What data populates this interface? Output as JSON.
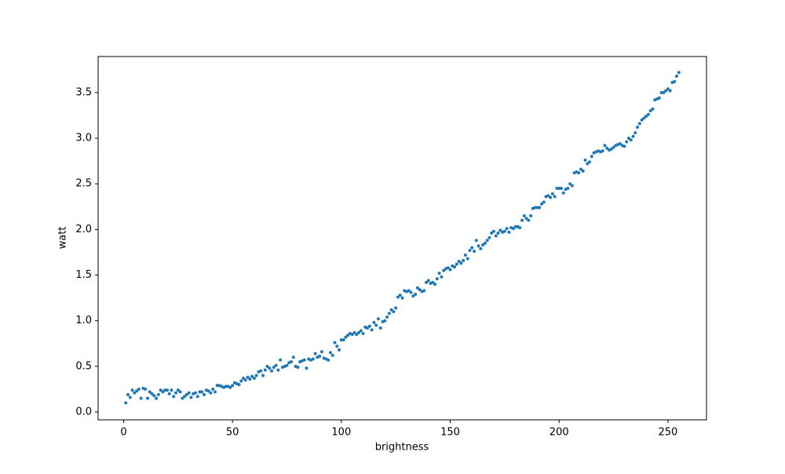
{
  "chart_data": {
    "type": "scatter",
    "xlabel": "brightness",
    "ylabel": "watt",
    "color": "#1f77b4",
    "x": [
      1,
      2,
      3,
      4,
      5,
      6,
      7,
      8,
      9,
      10,
      11,
      12,
      13,
      14,
      15,
      16,
      17,
      18,
      19,
      20,
      21,
      22,
      23,
      24,
      25,
      26,
      27,
      28,
      29,
      30,
      31,
      32,
      33,
      34,
      35,
      36,
      37,
      38,
      39,
      40,
      41,
      42,
      43,
      44,
      45,
      46,
      47,
      48,
      49,
      50,
      51,
      52,
      53,
      54,
      55,
      56,
      57,
      58,
      59,
      60,
      61,
      62,
      63,
      64,
      65,
      66,
      67,
      68,
      69,
      70,
      71,
      72,
      73,
      74,
      75,
      76,
      77,
      78,
      79,
      80,
      81,
      82,
      83,
      84,
      85,
      86,
      87,
      88,
      89,
      90,
      91,
      92,
      93,
      94,
      95,
      96,
      97,
      98,
      99,
      100,
      101,
      102,
      103,
      104,
      105,
      106,
      107,
      108,
      109,
      110,
      111,
      112,
      113,
      114,
      115,
      116,
      117,
      118,
      119,
      120,
      121,
      122,
      123,
      124,
      125,
      126,
      127,
      128,
      129,
      130,
      131,
      132,
      133,
      134,
      135,
      136,
      137,
      138,
      139,
      140,
      141,
      142,
      143,
      144,
      145,
      146,
      147,
      148,
      149,
      150,
      151,
      152,
      153,
      154,
      155,
      156,
      157,
      158,
      159,
      160,
      161,
      162,
      163,
      164,
      165,
      166,
      167,
      168,
      169,
      170,
      171,
      172,
      173,
      174,
      175,
      176,
      177,
      178,
      179,
      180,
      181,
      182,
      183,
      184,
      185,
      186,
      187,
      188,
      189,
      190,
      191,
      192,
      193,
      194,
      195,
      196,
      197,
      198,
      199,
      200,
      201,
      202,
      203,
      204,
      205,
      206,
      207,
      208,
      209,
      210,
      211,
      212,
      213,
      214,
      215,
      216,
      217,
      218,
      219,
      220,
      221,
      222,
      223,
      224,
      225,
      226,
      227,
      228,
      229,
      230,
      231,
      232,
      233,
      234,
      235,
      236,
      237,
      238,
      239,
      240,
      241,
      242,
      243,
      244,
      245,
      246,
      247,
      248,
      249,
      250,
      251,
      252,
      253,
      254,
      255
    ],
    "values": [
      0.1,
      0.19,
      0.16,
      0.24,
      0.21,
      0.23,
      0.25,
      0.15,
      0.26,
      0.25,
      0.15,
      0.22,
      0.2,
      0.18,
      0.15,
      0.19,
      0.24,
      0.22,
      0.24,
      0.24,
      0.2,
      0.24,
      0.17,
      0.21,
      0.24,
      0.22,
      0.15,
      0.17,
      0.19,
      0.21,
      0.16,
      0.2,
      0.21,
      0.17,
      0.22,
      0.22,
      0.19,
      0.24,
      0.23,
      0.21,
      0.25,
      0.22,
      0.29,
      0.29,
      0.28,
      0.27,
      0.28,
      0.28,
      0.27,
      0.29,
      0.32,
      0.31,
      0.3,
      0.34,
      0.37,
      0.35,
      0.38,
      0.36,
      0.39,
      0.37,
      0.4,
      0.44,
      0.45,
      0.4,
      0.46,
      0.5,
      0.48,
      0.45,
      0.49,
      0.51,
      0.46,
      0.57,
      0.49,
      0.5,
      0.51,
      0.54,
      0.55,
      0.6,
      0.5,
      0.49,
      0.55,
      0.56,
      0.57,
      0.48,
      0.58,
      0.57,
      0.58,
      0.64,
      0.6,
      0.61,
      0.66,
      0.59,
      0.58,
      0.57,
      0.65,
      0.62,
      0.76,
      0.72,
      0.68,
      0.79,
      0.79,
      0.82,
      0.84,
      0.86,
      0.85,
      0.87,
      0.85,
      0.87,
      0.89,
      0.86,
      0.93,
      0.92,
      0.94,
      0.9,
      0.98,
      0.95,
      1.02,
      0.92,
      0.99,
      1.0,
      1.04,
      1.08,
      1.12,
      1.1,
      1.14,
      1.26,
      1.28,
      1.25,
      1.33,
      1.32,
      1.33,
      1.31,
      1.27,
      1.29,
      1.36,
      1.34,
      1.32,
      1.33,
      1.42,
      1.44,
      1.41,
      1.42,
      1.4,
      1.46,
      1.52,
      1.48,
      1.55,
      1.57,
      1.58,
      1.56,
      1.6,
      1.59,
      1.62,
      1.65,
      1.63,
      1.66,
      1.72,
      1.68,
      1.77,
      1.8,
      1.76,
      1.88,
      1.82,
      1.79,
      1.83,
      1.85,
      1.88,
      1.91,
      1.96,
      1.98,
      1.93,
      1.96,
      1.99,
      1.97,
      1.98,
      2.01,
      1.97,
      2.02,
      2.01,
      2.03,
      2.03,
      2.02,
      2.1,
      2.15,
      2.12,
      2.1,
      2.15,
      2.23,
      2.24,
      2.24,
      2.24,
      2.28,
      2.3,
      2.36,
      2.37,
      2.35,
      2.39,
      2.36,
      2.45,
      2.45,
      2.45,
      2.4,
      2.44,
      2.45,
      2.5,
      2.48,
      2.62,
      2.63,
      2.62,
      2.66,
      2.64,
      2.76,
      2.72,
      2.74,
      2.8,
      2.84,
      2.85,
      2.86,
      2.85,
      2.86,
      2.92,
      2.89,
      2.87,
      2.88,
      2.9,
      2.92,
      2.93,
      2.94,
      2.92,
      2.91,
      2.96,
      3.0,
      2.98,
      3.02,
      3.06,
      3.12,
      3.16,
      3.2,
      3.22,
      3.24,
      3.26,
      3.3,
      3.32,
      3.42,
      3.43,
      3.44,
      3.5,
      3.5,
      3.52,
      3.54,
      3.52,
      3.61,
      3.62,
      3.68,
      3.72
    ],
    "xlim": [
      -11.7,
      267.7
    ],
    "xticks": [
      0,
      50,
      100,
      150,
      200,
      250
    ],
    "ylim": [
      -0.086,
      3.895
    ],
    "yticks": [
      {
        "value": 0,
        "label": "0.0"
      },
      0.5,
      {
        "value": 1,
        "label": "1.0"
      },
      1.5,
      {
        "value": 2,
        "label": "2.0"
      },
      2.5,
      {
        "value": 3,
        "label": "3.0"
      },
      3.5
    ]
  }
}
